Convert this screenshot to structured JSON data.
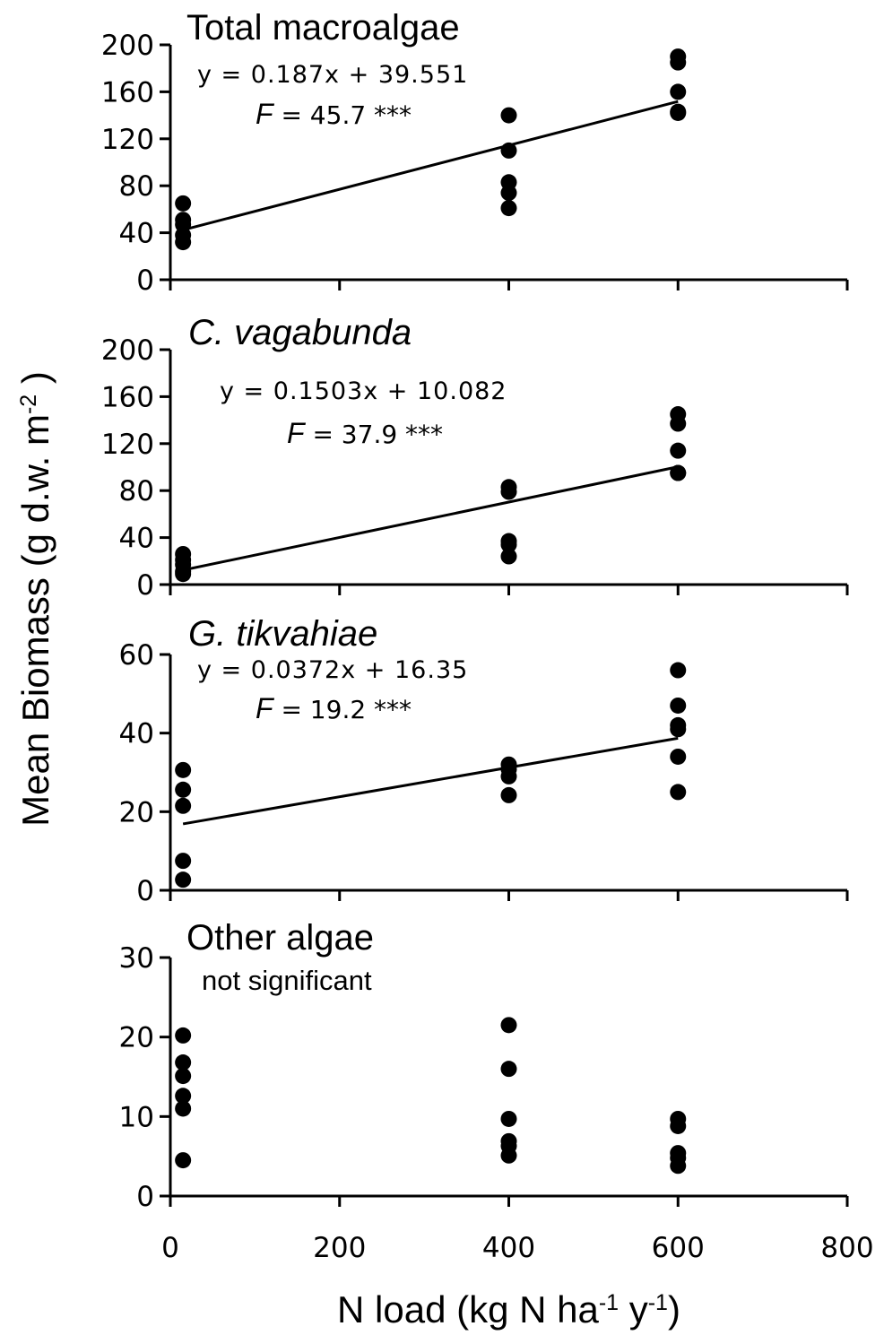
{
  "ylabel_parts": [
    "Mean Biomass (g d.w. m",
    "-2",
    " )"
  ],
  "chart_data": [
    {
      "type": "scatter",
      "title": "Total macroalgae",
      "title_italic": false,
      "annotations": [
        "y = 0.187x + 39.551",
        [
          "F",
          " =  45.7 ***"
        ]
      ],
      "x": [
        15,
        15,
        15,
        15,
        15,
        400,
        400,
        400,
        400,
        400,
        600,
        600,
        600,
        600,
        600
      ],
      "values": [
        65,
        51,
        47,
        38,
        32,
        140,
        110,
        83,
        74,
        61,
        190,
        185,
        160,
        143,
        142
      ],
      "color": "#000000",
      "fit": {
        "x": [
          15,
          600
        ],
        "values": [
          42.4,
          151.8
        ]
      },
      "xlim": [
        0,
        800
      ],
      "xticks": [
        0,
        200,
        400,
        600,
        800
      ],
      "show_xtick_labels": false,
      "ylim": [
        0,
        200
      ],
      "yticks": [
        0,
        40,
        80,
        120,
        160,
        200
      ]
    },
    {
      "type": "scatter",
      "title": "C. vagabunda",
      "title_italic": true,
      "annotations": [
        "y = 0.1503x + 10.082",
        [
          "F",
          " =  37.9 ***"
        ]
      ],
      "x": [
        15,
        15,
        15,
        15,
        15,
        400,
        400,
        400,
        400,
        400,
        600,
        600,
        600,
        600,
        600
      ],
      "values": [
        26,
        21,
        17,
        11,
        9,
        83,
        79,
        37,
        34,
        24,
        145,
        137,
        114,
        95,
        95
      ],
      "color": "#000000",
      "fit": {
        "x": [
          15,
          600
        ],
        "values": [
          12.3,
          100.3
        ]
      },
      "xlim": [
        0,
        800
      ],
      "xticks": [
        0,
        200,
        400,
        600,
        800
      ],
      "show_xtick_labels": false,
      "ylim": [
        0,
        200
      ],
      "yticks": [
        0,
        40,
        80,
        120,
        160,
        200
      ]
    },
    {
      "type": "scatter",
      "title": "G. tikvahiae",
      "title_italic": true,
      "annotations": [
        "y = 0.0372x + 16.35",
        [
          "F",
          " =  19.2 ***"
        ]
      ],
      "x": [
        15,
        15,
        15,
        15,
        15,
        400,
        400,
        400,
        400,
        600,
        600,
        600,
        600,
        600,
        600
      ],
      "values": [
        30.6,
        25.6,
        21.5,
        7.5,
        2.7,
        32,
        30.8,
        29,
        24.2,
        56,
        47,
        42,
        41,
        34,
        25
      ],
      "color": "#000000",
      "fit": {
        "x": [
          15,
          600
        ],
        "values": [
          16.9,
          38.7
        ]
      },
      "xlim": [
        0,
        800
      ],
      "xticks": [
        0,
        200,
        400,
        600,
        800
      ],
      "show_xtick_labels": false,
      "ylim": [
        0,
        60
      ],
      "yticks": [
        0,
        20,
        40,
        60
      ]
    },
    {
      "type": "scatter",
      "title": "Other algae",
      "title_italic": false,
      "annotations": [
        "not significant"
      ],
      "x": [
        15,
        15,
        15,
        15,
        15,
        15,
        400,
        400,
        400,
        400,
        400,
        400,
        600,
        600,
        600,
        600,
        600
      ],
      "values": [
        20.2,
        16.8,
        15.1,
        12.6,
        11,
        4.5,
        21.5,
        16,
        9.7,
        6.9,
        6.3,
        5.1,
        9.7,
        8.8,
        5.4,
        4.8,
        3.8
      ],
      "color": "#000000",
      "xlim": [
        0,
        800
      ],
      "xticks": [
        0,
        200,
        400,
        600,
        800
      ],
      "show_xtick_labels": true,
      "xlabel_parts": [
        "N load (kg N ha",
        "-1",
        " y",
        "-1",
        ")"
      ],
      "ylim": [
        0,
        30
      ],
      "yticks": [
        0,
        10,
        20,
        30
      ]
    }
  ]
}
